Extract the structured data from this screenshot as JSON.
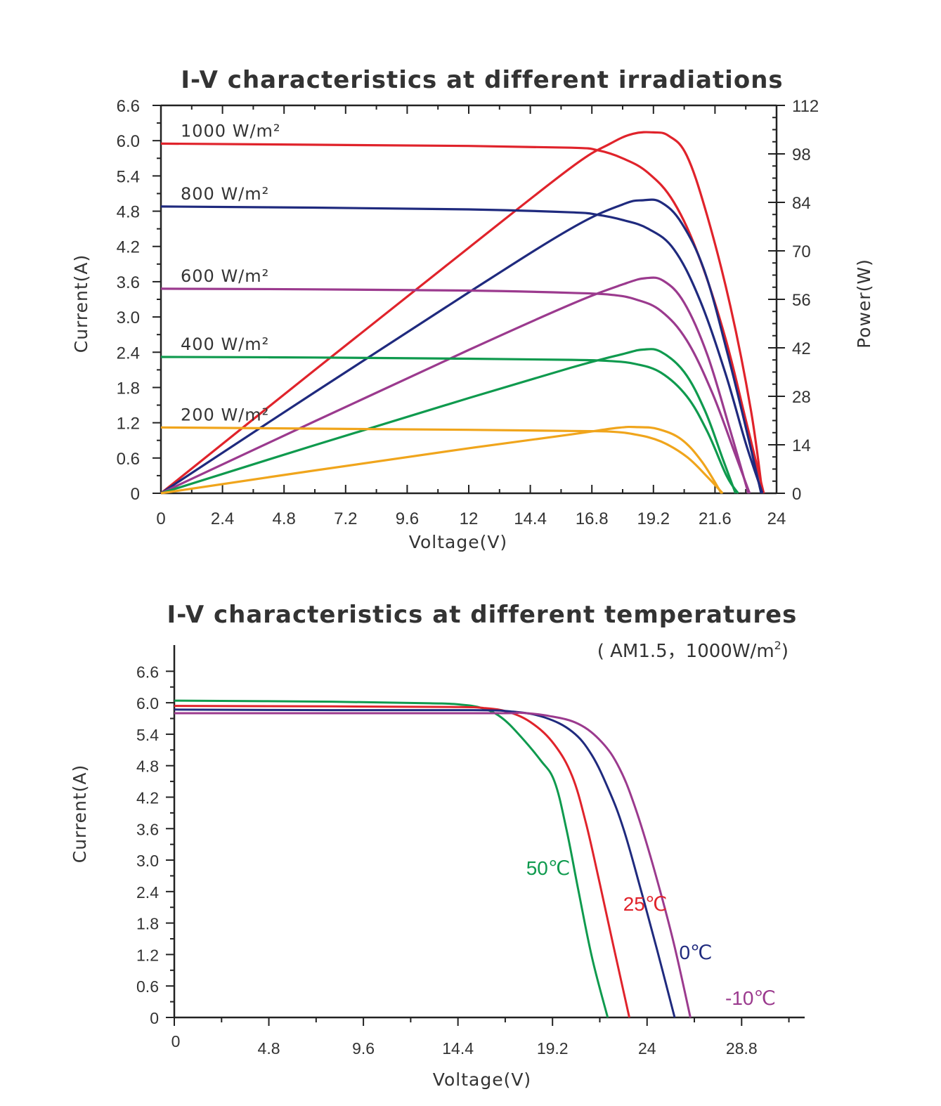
{
  "chart_data": [
    {
      "type": "line",
      "title": "I-V characteristics at different irradiations",
      "xlabel": "Voltage(V)",
      "ylabel": "Current(A)",
      "y2label": "Power(W)",
      "xlim": [
        0,
        24
      ],
      "ylim": [
        0,
        6.6
      ],
      "y2lim": [
        0,
        112
      ],
      "xticks": [
        "0",
        "2.4",
        "4.8",
        "7.2",
        "9.6",
        "12",
        "14.4",
        "16.8",
        "19.2",
        "21.6",
        "24"
      ],
      "yticks": [
        "0",
        "0.6",
        "1.2",
        "1.8",
        "2.4",
        "3.0",
        "3.6",
        "4.2",
        "4.8",
        "5.4",
        "6.0",
        "6.6"
      ],
      "y2ticks": [
        "0",
        "14",
        "28",
        "42",
        "56",
        "70",
        "84",
        "98",
        "112"
      ],
      "grid": false,
      "series": [
        {
          "name": "1000 W/m²",
          "color": "#e0232b",
          "iv": [
            [
              0,
              5.95
            ],
            [
              6,
              5.93
            ],
            [
              12,
              5.91
            ],
            [
              16,
              5.88
            ],
            [
              17,
              5.84
            ],
            [
              18,
              5.7
            ],
            [
              19,
              5.45
            ],
            [
              20,
              4.95
            ],
            [
              21,
              4.0
            ],
            [
              22,
              2.65
            ],
            [
              22.8,
              1.25
            ],
            [
              23.5,
              0
            ]
          ],
          "pv": [
            [
              0,
              0
            ],
            [
              6,
              35.6
            ],
            [
              12,
              70.9
            ],
            [
              16,
              94.1
            ],
            [
              17.5,
              100.9
            ],
            [
              18.4,
              103.8
            ],
            [
              19.2,
              104.2
            ],
            [
              19.8,
              103.2
            ],
            [
              20.5,
              97.5
            ],
            [
              21.3,
              80
            ],
            [
              22.2,
              54
            ],
            [
              23.0,
              24
            ],
            [
              23.45,
              0
            ]
          ]
        },
        {
          "name": "800 W/m²",
          "color": "#1f2a7e",
          "iv": [
            [
              0,
              4.88
            ],
            [
              6,
              4.86
            ],
            [
              12,
              4.83
            ],
            [
              16,
              4.78
            ],
            [
              17,
              4.74
            ],
            [
              18,
              4.65
            ],
            [
              19,
              4.5
            ],
            [
              20,
              4.15
            ],
            [
              21,
              3.3
            ],
            [
              22,
              2.05
            ],
            [
              22.8,
              0.85
            ],
            [
              23.45,
              0
            ]
          ],
          "pv": [
            [
              0,
              0
            ],
            [
              6,
              29.2
            ],
            [
              12,
              58
            ],
            [
              16,
              76.5
            ],
            [
              18,
              83.4
            ],
            [
              18.8,
              84.6
            ],
            [
              19.5,
              84
            ],
            [
              20.3,
              78
            ],
            [
              21.2,
              64
            ],
            [
              22.1,
              40
            ],
            [
              22.9,
              16
            ],
            [
              23.4,
              0
            ]
          ]
        },
        {
          "name": "600 W/m²",
          "color": "#9b3a8e",
          "iv": [
            [
              0,
              3.48
            ],
            [
              6,
              3.47
            ],
            [
              12,
              3.45
            ],
            [
              16,
              3.41
            ],
            [
              17.5,
              3.38
            ],
            [
              18.5,
              3.3
            ],
            [
              19.5,
              3.1
            ],
            [
              20.5,
              2.6
            ],
            [
              21.5,
              1.7
            ],
            [
              22.4,
              0.65
            ],
            [
              22.95,
              0
            ]
          ],
          "pv": [
            [
              0,
              0
            ],
            [
              6,
              20.8
            ],
            [
              12,
              41.4
            ],
            [
              16,
              54.6
            ],
            [
              18,
              60.3
            ],
            [
              18.9,
              62.1
            ],
            [
              19.6,
              61.3
            ],
            [
              20.4,
              55
            ],
            [
              21.3,
              40
            ],
            [
              22.2,
              18
            ],
            [
              22.9,
              0
            ]
          ]
        },
        {
          "name": "400 W/m²",
          "color": "#0f9a4e",
          "iv": [
            [
              0,
              2.32
            ],
            [
              6,
              2.31
            ],
            [
              12,
              2.29
            ],
            [
              16,
              2.27
            ],
            [
              17.5,
              2.25
            ],
            [
              18.5,
              2.2
            ],
            [
              19.5,
              2.05
            ],
            [
              20.5,
              1.65
            ],
            [
              21.3,
              1.05
            ],
            [
              22.05,
              0.3
            ],
            [
              22.5,
              0
            ]
          ],
          "pv": [
            [
              0,
              0
            ],
            [
              6,
              13.9
            ],
            [
              12,
              27.5
            ],
            [
              16,
              36.3
            ],
            [
              18,
              40.2
            ],
            [
              18.8,
              41.5
            ],
            [
              19.5,
              40.8
            ],
            [
              20.4,
              35
            ],
            [
              21.2,
              24
            ],
            [
              21.9,
              10
            ],
            [
              22.4,
              0
            ]
          ]
        },
        {
          "name": "200 W/m²",
          "color": "#f0a51c",
          "iv": [
            [
              0,
              1.12
            ],
            [
              6,
              1.1
            ],
            [
              12,
              1.08
            ],
            [
              16,
              1.06
            ],
            [
              17.5,
              1.05
            ],
            [
              18.5,
              1.0
            ],
            [
              19.5,
              0.88
            ],
            [
              20.5,
              0.62
            ],
            [
              21.3,
              0.28
            ],
            [
              21.9,
              0
            ]
          ],
          "pv": [
            [
              0,
              0
            ],
            [
              6,
              6.6
            ],
            [
              12,
              13.0
            ],
            [
              16,
              17.0
            ],
            [
              17.8,
              18.9
            ],
            [
              18.6,
              19.1
            ],
            [
              19.4,
              18.5
            ],
            [
              20.3,
              15.5
            ],
            [
              21.1,
              9
            ],
            [
              21.85,
              0
            ]
          ]
        }
      ]
    },
    {
      "type": "line",
      "title": "I-V characteristics at different temperatures",
      "subtitle_main": "( AM1.5，1000W/m",
      "subtitle_sup": "2",
      "subtitle_end": ")",
      "xlabel": "Voltage(V)",
      "ylabel": "Current(A)",
      "xlim": [
        0,
        32
      ],
      "ylim": [
        0,
        7.1
      ],
      "xticks": [
        "0",
        "4.8",
        "9.6",
        "14.4",
        "19.2",
        "24",
        "28.8"
      ],
      "yticks": [
        "0",
        "0.6",
        "1.2",
        "1.8",
        "2.4",
        "3.0",
        "3.6",
        "4.2",
        "4.8",
        "5.4",
        "6.0",
        "6.6"
      ],
      "grid": false,
      "series": [
        {
          "name": "50℃",
          "color": "#0f9a4e",
          "iv": [
            [
              0,
              6.04
            ],
            [
              8,
              6.02
            ],
            [
              13,
              5.99
            ],
            [
              14.4,
              5.97
            ],
            [
              15.6,
              5.9
            ],
            [
              16.6,
              5.72
            ],
            [
              17.6,
              5.35
            ],
            [
              18.6,
              4.9
            ],
            [
              19.3,
              4.5
            ],
            [
              19.9,
              3.6
            ],
            [
              20.5,
              2.45
            ],
            [
              21.2,
              1.15
            ],
            [
              22.0,
              0
            ]
          ]
        },
        {
          "name": "25℃",
          "color": "#e0232b",
          "iv": [
            [
              0,
              5.94
            ],
            [
              8,
              5.93
            ],
            [
              14,
              5.92
            ],
            [
              15.7,
              5.9
            ],
            [
              17,
              5.82
            ],
            [
              18.2,
              5.6
            ],
            [
              19.3,
              5.2
            ],
            [
              20.2,
              4.6
            ],
            [
              20.9,
              3.7
            ],
            [
              21.6,
              2.55
            ],
            [
              22.3,
              1.35
            ],
            [
              23.1,
              0
            ]
          ]
        },
        {
          "name": "0℃",
          "color": "#1f2a7e",
          "iv": [
            [
              0,
              5.87
            ],
            [
              8,
              5.86
            ],
            [
              15,
              5.86
            ],
            [
              17.2,
              5.83
            ],
            [
              18.8,
              5.72
            ],
            [
              20.2,
              5.45
            ],
            [
              21.2,
              5.0
            ],
            [
              22.1,
              4.3
            ],
            [
              22.8,
              3.6
            ],
            [
              23.6,
              2.55
            ],
            [
              24.5,
              1.3
            ],
            [
              25.4,
              0
            ]
          ]
        },
        {
          "name": "-10℃",
          "color": "#9b3a8e",
          "iv": [
            [
              0,
              5.8
            ],
            [
              8,
              5.8
            ],
            [
              16.5,
              5.8
            ],
            [
              17.5,
              5.81
            ],
            [
              19,
              5.75
            ],
            [
              20.5,
              5.6
            ],
            [
              21.7,
              5.25
            ],
            [
              22.6,
              4.75
            ],
            [
              23.4,
              4.0
            ],
            [
              24.3,
              2.9
            ],
            [
              25.3,
              1.5
            ],
            [
              26.2,
              0
            ]
          ]
        }
      ]
    }
  ]
}
